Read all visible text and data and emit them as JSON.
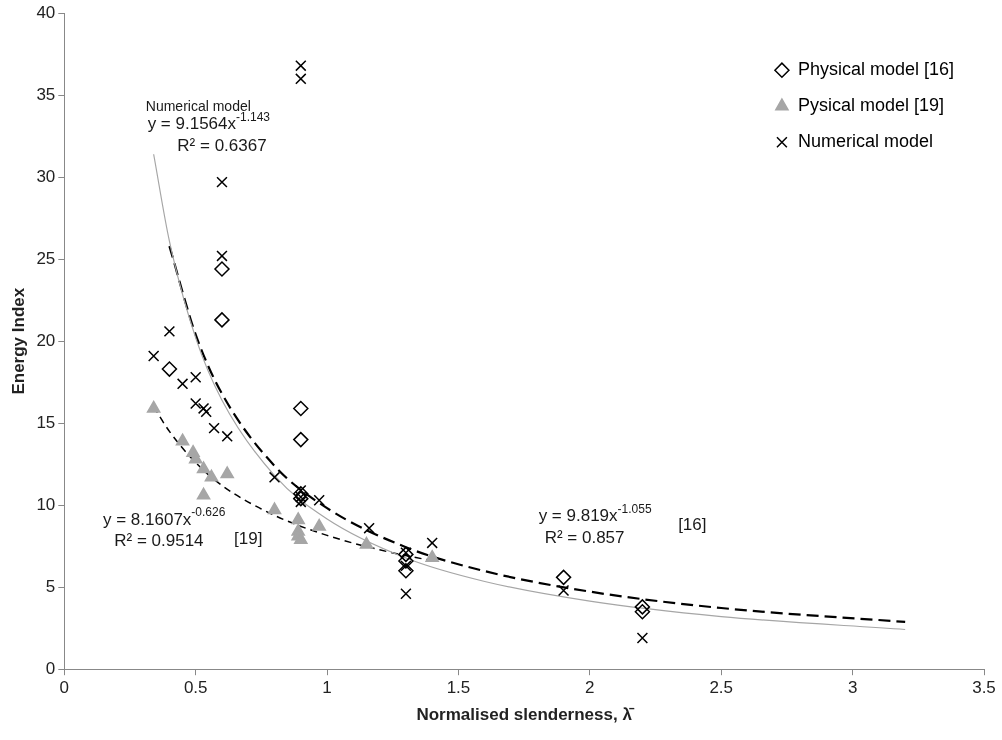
{
  "chart_data": {
    "type": "scatter",
    "xlabel": "Normalised slenderness, λ̄",
    "ylabel": "Energy Index",
    "xlim": [
      0,
      3.5
    ],
    "xticks": [
      0,
      0.5,
      1,
      1.5,
      2,
      2.5,
      3,
      3.5
    ],
    "ylim": [
      0,
      40
    ],
    "yticks": [
      0,
      5,
      10,
      15,
      20,
      25,
      30,
      35,
      40
    ],
    "legend": "top right",
    "grid": false,
    "series": [
      {
        "name": "Physical model [16]",
        "color": "#000000",
        "marker": "diamond",
        "x": [
          0.6,
          0.6,
          0.4,
          0.9,
          0.9,
          0.9,
          0.9,
          1.3,
          1.3,
          1.3,
          1.9,
          2.2,
          2.2
        ],
        "values": [
          24.4,
          21.3,
          18.3,
          15.9,
          14.0,
          10.7,
          10.4,
          7.0,
          6.6,
          6.0,
          5.6,
          3.8,
          3.5
        ]
      },
      {
        "name": "Pysical model [19]",
        "color": "#a6a6a6",
        "marker": "triangle",
        "x": [
          0.34,
          0.45,
          0.49,
          0.5,
          0.53,
          0.56,
          0.62,
          0.53,
          0.8,
          0.89,
          0.89,
          0.89,
          0.9,
          0.97,
          1.15,
          1.4
        ],
        "values": [
          15.9,
          13.9,
          13.2,
          12.8,
          12.2,
          11.7,
          11.9,
          10.6,
          9.7,
          9.1,
          8.4,
          8.1,
          7.9,
          8.7,
          7.6,
          6.8
        ]
      },
      {
        "name": "Numerical model",
        "color": "#000000",
        "marker": "cross",
        "x": [
          0.9,
          0.9,
          0.6,
          0.6,
          0.4,
          0.34,
          0.5,
          0.45,
          0.5,
          0.54,
          0.53,
          0.57,
          0.62,
          0.8,
          0.9,
          0.9,
          0.9,
          0.97,
          1.16,
          1.3,
          1.3,
          1.3,
          1.4,
          1.9,
          2.2
        ],
        "values": [
          36.8,
          36.0,
          29.7,
          25.2,
          20.6,
          19.1,
          17.8,
          17.4,
          16.2,
          15.7,
          15.9,
          14.7,
          14.2,
          11.7,
          10.9,
          10.5,
          10.2,
          10.3,
          8.6,
          7.1,
          6.3,
          4.6,
          7.7,
          4.8,
          1.9
        ]
      },
      {
        "type": "line",
        "color": "#a6a6a6",
        "line_style": "solid",
        "marker": "none",
        "x": [
          0.34,
          0.4,
          0.5,
          0.6,
          0.8,
          1.0,
          1.3,
          1.6,
          2.0,
          2.5,
          3.2
        ],
        "values": [
          31.4,
          26.1,
          20.2,
          16.4,
          11.8,
          9.16,
          6.78,
          5.35,
          4.15,
          3.21,
          2.42
        ]
      },
      {
        "type": "line",
        "color": "#000000",
        "line_style": "dashed",
        "marker": "none",
        "x": [
          0.4,
          0.5,
          0.6,
          0.8,
          1.0,
          1.3,
          1.6,
          2.0,
          2.5,
          3.2
        ],
        "values": [
          25.8,
          20.4,
          16.8,
          12.4,
          9.82,
          7.44,
          5.98,
          4.73,
          3.73,
          2.88
        ]
      },
      {
        "type": "line",
        "color": "#000000",
        "line_style": "dotted",
        "marker": "none",
        "x": [
          0.34,
          0.4,
          0.5,
          0.6,
          0.8,
          1.0,
          1.2,
          1.4
        ],
        "values": [
          16.0,
          14.5,
          12.6,
          11.2,
          9.38,
          8.16,
          7.28,
          6.61
        ]
      }
    ],
    "annotations": [
      "Numerical model",
      "y = 9.1564x$^{-1.143}$",
      "R² = 0.6367",
      "y = 8.1607x$^{-0.626}$",
      "R² = 0.9514",
      "[19]",
      "y = 9.819x$^{-1.055}$",
      "R² = 0.857",
      "[16]"
    ]
  }
}
